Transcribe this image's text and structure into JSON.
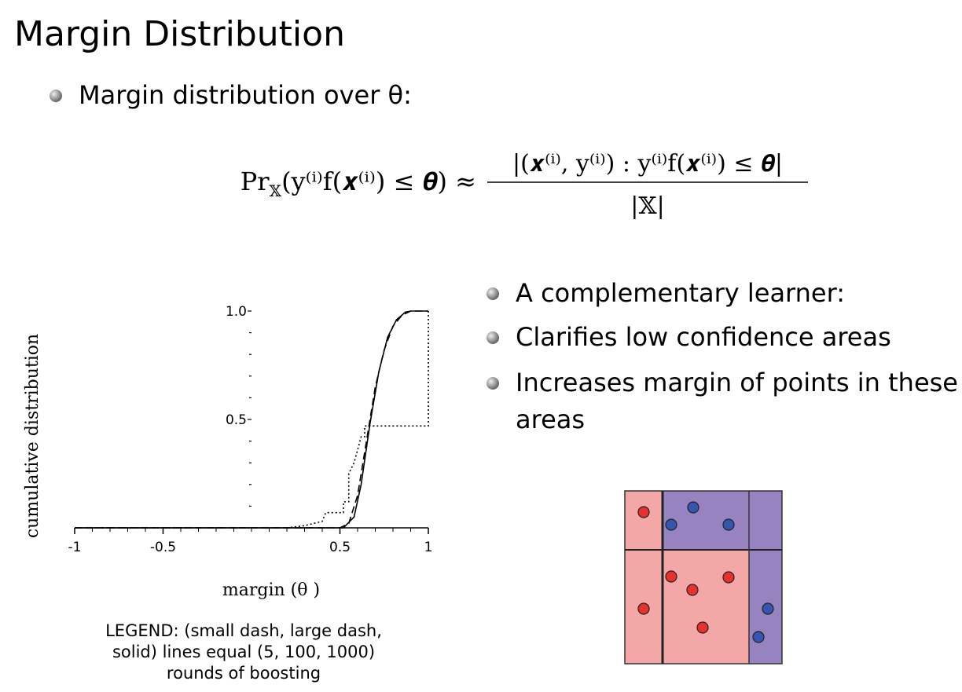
{
  "title": "Margin Distribution",
  "intro_bullet": "Margin distribution over θ:",
  "formula": {
    "lhs": [
      "Pr",
      "𝕏",
      "(y⁽ⁱ⁾f(𝒙⁽ⁱ⁾) ≤ 𝜽) ≈"
    ],
    "numerator": "|(𝒙⁽ⁱ⁾, y⁽ⁱ⁾) : y⁽ⁱ⁾f(𝒙⁽ⁱ⁾) ≤ 𝜽|",
    "denominator": "|𝕏|"
  },
  "bullets": [
    [
      "A complementary learner:"
    ],
    [
      "Clarifies low confidence areas"
    ],
    [
      "Increases margin of points in these",
      "areas"
    ]
  ],
  "chart_data": {
    "type": "line",
    "x_label": "margin (θ )",
    "y_label": "cumulative distribution",
    "xlim": [
      -1,
      1
    ],
    "ylim": [
      0,
      1
    ],
    "xticks": [
      -1,
      -0.5,
      0.5,
      1
    ],
    "xticks_minor": [
      -0.9,
      -0.8,
      -0.7,
      -0.6,
      -0.4,
      -0.3,
      -0.2,
      -0.1,
      0,
      0.1,
      0.2,
      0.3,
      0.4,
      0.6,
      0.7,
      0.8,
      0.9
    ],
    "yticks": [
      {
        "value": 0.5,
        "label": "0.5"
      },
      {
        "value": 1,
        "label": "1.0"
      }
    ],
    "yticks_minor": [
      0.1,
      0.2,
      0.3,
      0.4,
      0.6,
      0.7,
      0.8,
      0.9
    ],
    "series": [
      {
        "color": "#000000",
        "dash": "2,3",
        "x": [
          -1,
          0.2,
          0.3,
          0.4,
          0.42,
          0.52,
          0.52,
          0.55,
          0.55,
          0.58,
          0.6,
          0.62,
          0.64,
          0.64,
          1,
          1
        ],
        "values": [
          0,
          0,
          0.01,
          0.03,
          0.07,
          0.07,
          0.12,
          0.12,
          0.25,
          0.3,
          0.36,
          0.42,
          0.42,
          0.47,
          0.47,
          1
        ]
      },
      {
        "color": "#000000",
        "dash": "9,5",
        "x": [
          -1,
          0.5,
          0.55,
          0.6,
          0.65,
          0.7,
          0.75,
          0.8,
          0.85,
          0.9,
          1
        ],
        "values": [
          0,
          0,
          0.02,
          0.15,
          0.4,
          0.65,
          0.82,
          0.93,
          0.98,
          1,
          1
        ]
      },
      {
        "color": "#000000",
        "dash": "none",
        "x": [
          -1,
          0.52,
          0.58,
          0.62,
          0.67,
          0.72,
          0.77,
          0.82,
          0.87,
          0.9,
          1
        ],
        "values": [
          0,
          0,
          0.05,
          0.2,
          0.48,
          0.72,
          0.88,
          0.96,
          0.995,
          1,
          1
        ]
      }
    ],
    "caption": [
      "LEGEND: (small dash, large dash,",
      "solid) lines equal (5, 100, 1000)",
      "rounds of boosting"
    ]
  }
}
